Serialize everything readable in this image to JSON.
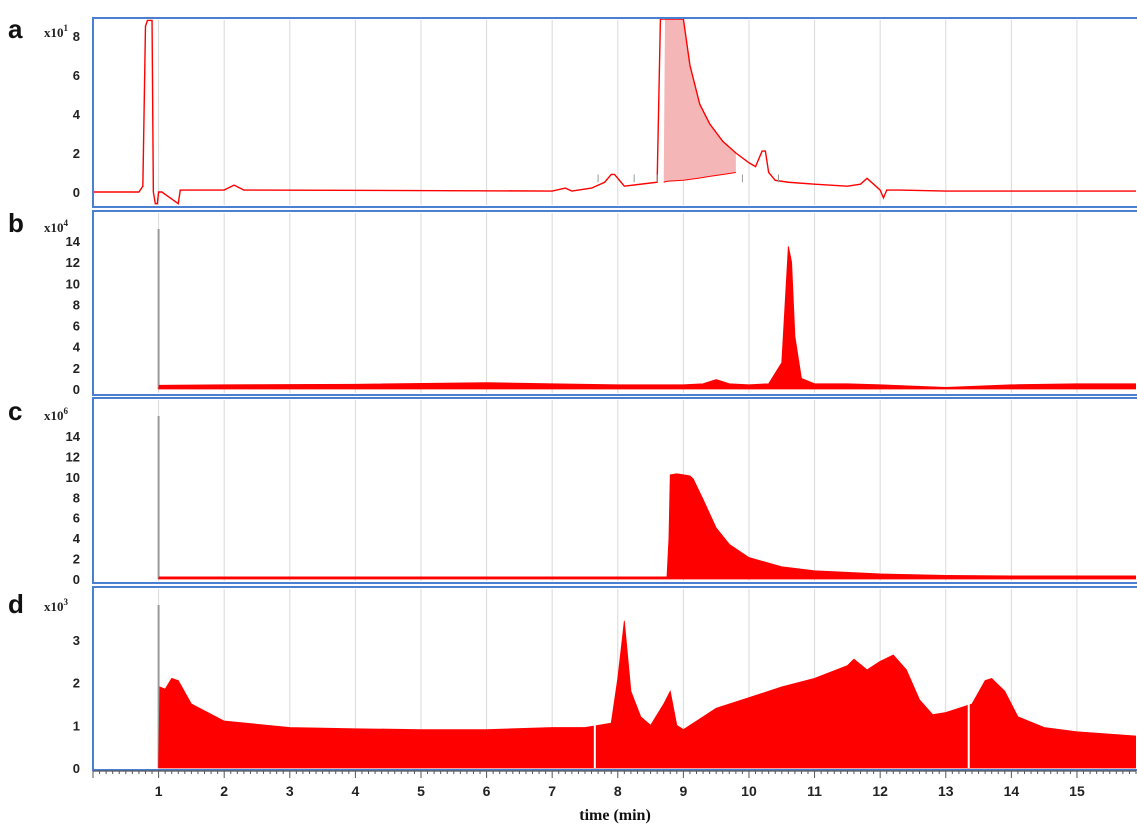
{
  "chart_data": [
    {
      "panel": "a",
      "type": "line",
      "scale_base": "x10",
      "scale_exp": "1",
      "yticks": [
        "0",
        "2",
        "4",
        "6",
        "8"
      ],
      "ylim": [
        -1,
        9
      ],
      "xlim": [
        0,
        15.9
      ],
      "color": "#ff0000",
      "series": [
        {
          "x": [
            0,
            0.7,
            0.76,
            0.8,
            0.83,
            0.9,
            0.92,
            0.95,
            0.98,
            1.0,
            1.05,
            1.3,
            1.33,
            1.4,
            2.0,
            2.15,
            2.3,
            7.0,
            7.2,
            7.3,
            7.6,
            7.8,
            7.9,
            7.95,
            8.05,
            8.1,
            8.6,
            8.65,
            8.68,
            8.72,
            9.0,
            9.1,
            9.25,
            9.4,
            9.6,
            9.8,
            10.0,
            10.1,
            10.2,
            10.25,
            10.3,
            10.4,
            10.6,
            11.0,
            11.5,
            11.7,
            11.8,
            11.9,
            12.0,
            12.05,
            12.1,
            12.3,
            13.0,
            14.0,
            15.0,
            15.9
          ],
          "y": [
            0,
            0,
            0.3,
            8.5,
            8.8,
            8.8,
            0,
            -0.6,
            -0.6,
            0,
            0,
            -0.6,
            0.1,
            0.1,
            0.1,
            0.35,
            0.1,
            0.05,
            0.2,
            0.05,
            0.2,
            0.5,
            0.9,
            0.9,
            0.5,
            0.3,
            0.5,
            9.0,
            9.0,
            9.0,
            9.0,
            6.5,
            4.5,
            3.5,
            2.6,
            2.0,
            1.5,
            1.3,
            2.1,
            2.1,
            1.0,
            0.6,
            0.5,
            0.4,
            0.3,
            0.4,
            0.7,
            0.4,
            0.1,
            -0.3,
            0.1,
            0.1,
            0.05,
            0.05,
            0.05,
            0.05
          ]
        }
      ],
      "shaded_region": {
        "x": [
          8.7,
          8.72,
          8.74,
          8.78,
          9.0,
          9.1,
          9.25,
          9.4,
          9.6,
          9.8
        ],
        "y": [
          0.5,
          9.0,
          9.0,
          9.0,
          9.0,
          6.5,
          4.5,
          3.5,
          2.6,
          2.0
        ],
        "baseline": [
          0.5,
          0.52,
          0.54,
          0.56,
          0.6,
          0.65,
          0.72,
          0.8,
          0.9,
          1.0
        ]
      }
    },
    {
      "panel": "b",
      "type": "area",
      "scale_base": "x10",
      "scale_exp": "4",
      "yticks": [
        "0",
        "2",
        "4",
        "6",
        "8",
        "10",
        "12",
        "14"
      ],
      "ylim": [
        0,
        15
      ],
      "xlim": [
        0,
        15.9
      ],
      "color": "#ff0000",
      "series": [
        {
          "x": [
            1.0,
            1.01,
            2.0,
            4.0,
            6.0,
            7.0,
            8.0,
            9.0,
            9.3,
            9.5,
            9.7,
            10.0,
            10.3,
            10.5,
            10.6,
            10.65,
            10.7,
            10.8,
            11.0,
            11.5,
            12.0,
            13.0,
            14.0,
            15.0,
            15.9
          ],
          "y": [
            0,
            0.35,
            0.4,
            0.45,
            0.6,
            0.5,
            0.4,
            0.4,
            0.5,
            0.9,
            0.5,
            0.4,
            0.5,
            2.5,
            13.5,
            12.0,
            5.0,
            1.0,
            0.5,
            0.5,
            0.4,
            0.15,
            0.4,
            0.5,
            0.5
          ]
        }
      ]
    },
    {
      "panel": "c",
      "type": "area",
      "scale_base": "x10",
      "scale_exp": "6",
      "yticks": [
        "0",
        "2",
        "4",
        "6",
        "8",
        "10",
        "12",
        "14"
      ],
      "ylim": [
        0,
        15
      ],
      "xlim": [
        0,
        15.9
      ],
      "color": "#ff0000",
      "series": [
        {
          "x": [
            1.0,
            1.01,
            8.75,
            8.78,
            8.8,
            8.9,
            9.0,
            9.1,
            9.15,
            9.3,
            9.5,
            9.7,
            10.0,
            10.5,
            11.0,
            12.0,
            13.0,
            14.0,
            15.0,
            15.9
          ],
          "y": [
            0,
            0.2,
            0.2,
            4.0,
            10.2,
            10.3,
            10.2,
            10.1,
            9.8,
            7.8,
            5.0,
            3.4,
            2.1,
            1.2,
            0.8,
            0.5,
            0.35,
            0.3,
            0.3,
            0.3
          ]
        }
      ]
    },
    {
      "panel": "d",
      "type": "area",
      "scale_base": "x10",
      "scale_exp": "3",
      "yticks": [
        "0",
        "1",
        "2",
        "3"
      ],
      "ylim": [
        0,
        3.75
      ],
      "xlim": [
        0,
        15.9
      ],
      "color": "#ff0000",
      "series": [
        {
          "x": [
            1.0,
            1.02,
            1.1,
            1.2,
            1.3,
            1.5,
            2.0,
            3.0,
            4.0,
            5.0,
            6.0,
            7.0,
            7.5,
            7.9,
            8.0,
            8.1,
            8.2,
            8.35,
            8.5,
            8.7,
            8.8,
            8.9,
            9.0,
            9.2,
            9.5,
            10.0,
            10.5,
            11.0,
            11.5,
            11.6,
            11.8,
            12.0,
            12.2,
            12.4,
            12.6,
            12.8,
            13.0,
            13.4,
            13.6,
            13.7,
            13.9,
            14.1,
            14.5,
            15.0,
            15.9
          ],
          "y": [
            0,
            1.9,
            1.85,
            2.1,
            2.05,
            1.5,
            1.1,
            0.95,
            0.92,
            0.9,
            0.9,
            0.95,
            0.95,
            1.05,
            2.1,
            3.45,
            1.8,
            1.2,
            1.0,
            1.5,
            1.8,
            1.0,
            0.9,
            1.1,
            1.4,
            1.65,
            1.9,
            2.1,
            2.4,
            2.55,
            2.3,
            2.5,
            2.65,
            2.3,
            1.6,
            1.25,
            1.3,
            1.5,
            2.05,
            2.1,
            1.8,
            1.2,
            0.95,
            0.85,
            0.75
          ]
        }
      ],
      "gaps_x": [
        7.65,
        13.35
      ]
    }
  ],
  "x_ticks": [
    "1",
    "2",
    "3",
    "4",
    "5",
    "6",
    "7",
    "8",
    "9",
    "10",
    "11",
    "12",
    "13",
    "14",
    "15"
  ],
  "xlabel": "time (min)"
}
